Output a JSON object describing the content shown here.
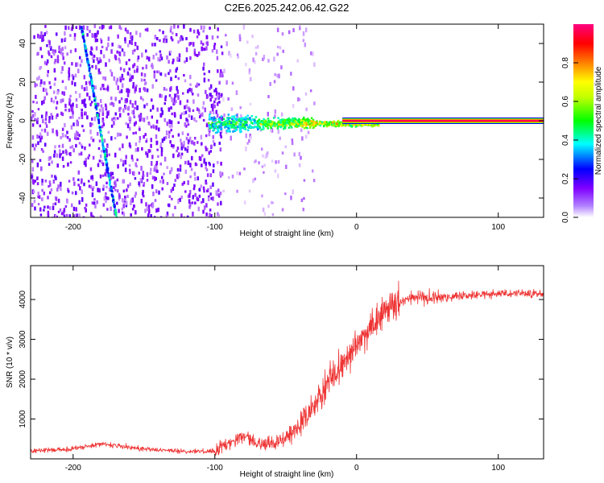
{
  "title": "C2E6.2025.242.06.42.G22",
  "chart_data": [
    {
      "type": "heatmap",
      "xlabel": "Height of straight line (km)",
      "ylabel": "Frequency (Hz)",
      "xlim": [
        -230,
        132
      ],
      "ylim": [
        -50,
        50
      ],
      "x_ticks": [
        -200,
        -100,
        0,
        100
      ],
      "y_ticks": [
        -40,
        -20,
        0,
        20,
        40
      ],
      "colorbar": {
        "label": "Normalized spectral amplitude",
        "range": [
          0,
          1
        ],
        "ticks": [
          "0.0",
          "0.2",
          "0.4",
          "0.6",
          "0.8"
        ],
        "colormap": [
          "#ffffff",
          "#8000ff",
          "#0000ff",
          "#00ffff",
          "#00ff00",
          "#ffff00",
          "#ff8000",
          "#ff0000",
          "#ff0080"
        ]
      },
      "features": {
        "noise_region_x": [
          -230,
          -95
        ],
        "sparse_region_x": [
          -95,
          -30
        ],
        "noise_ridge": {
          "x": [
            -195,
            -170
          ],
          "y": [
            50,
            -50
          ]
        },
        "signal_cluster": {
          "x": [
            -105,
            15
          ],
          "y_center": -1
        },
        "carrier_line": {
          "x": [
            -10,
            132
          ],
          "y": 0
        }
      }
    },
    {
      "type": "line",
      "xlabel": "Height of straight line (km)",
      "ylabel": "SNR (10 * v/v)",
      "xlim": [
        -230,
        132
      ],
      "ylim": [
        0,
        4850
      ],
      "x_ticks": [
        -200,
        -100,
        0,
        100
      ],
      "y_ticks": [
        1000,
        2000,
        3000,
        4000
      ],
      "line_color": "#ee3333",
      "series": [
        {
          "x": [
            -230,
            -200,
            -180,
            -150,
            -120,
            -100,
            -90,
            -80,
            -70,
            -60,
            -50,
            -40,
            -30,
            -20,
            -10,
            0,
            10,
            20,
            30,
            40,
            60,
            80,
            100,
            120,
            132
          ],
          "values": [
            200,
            250,
            380,
            250,
            180,
            200,
            400,
            600,
            350,
            400,
            500,
            800,
            1300,
            1900,
            2400,
            2800,
            3300,
            3700,
            3950,
            4050,
            4050,
            4100,
            4150,
            4150,
            4150
          ]
        }
      ]
    }
  ]
}
